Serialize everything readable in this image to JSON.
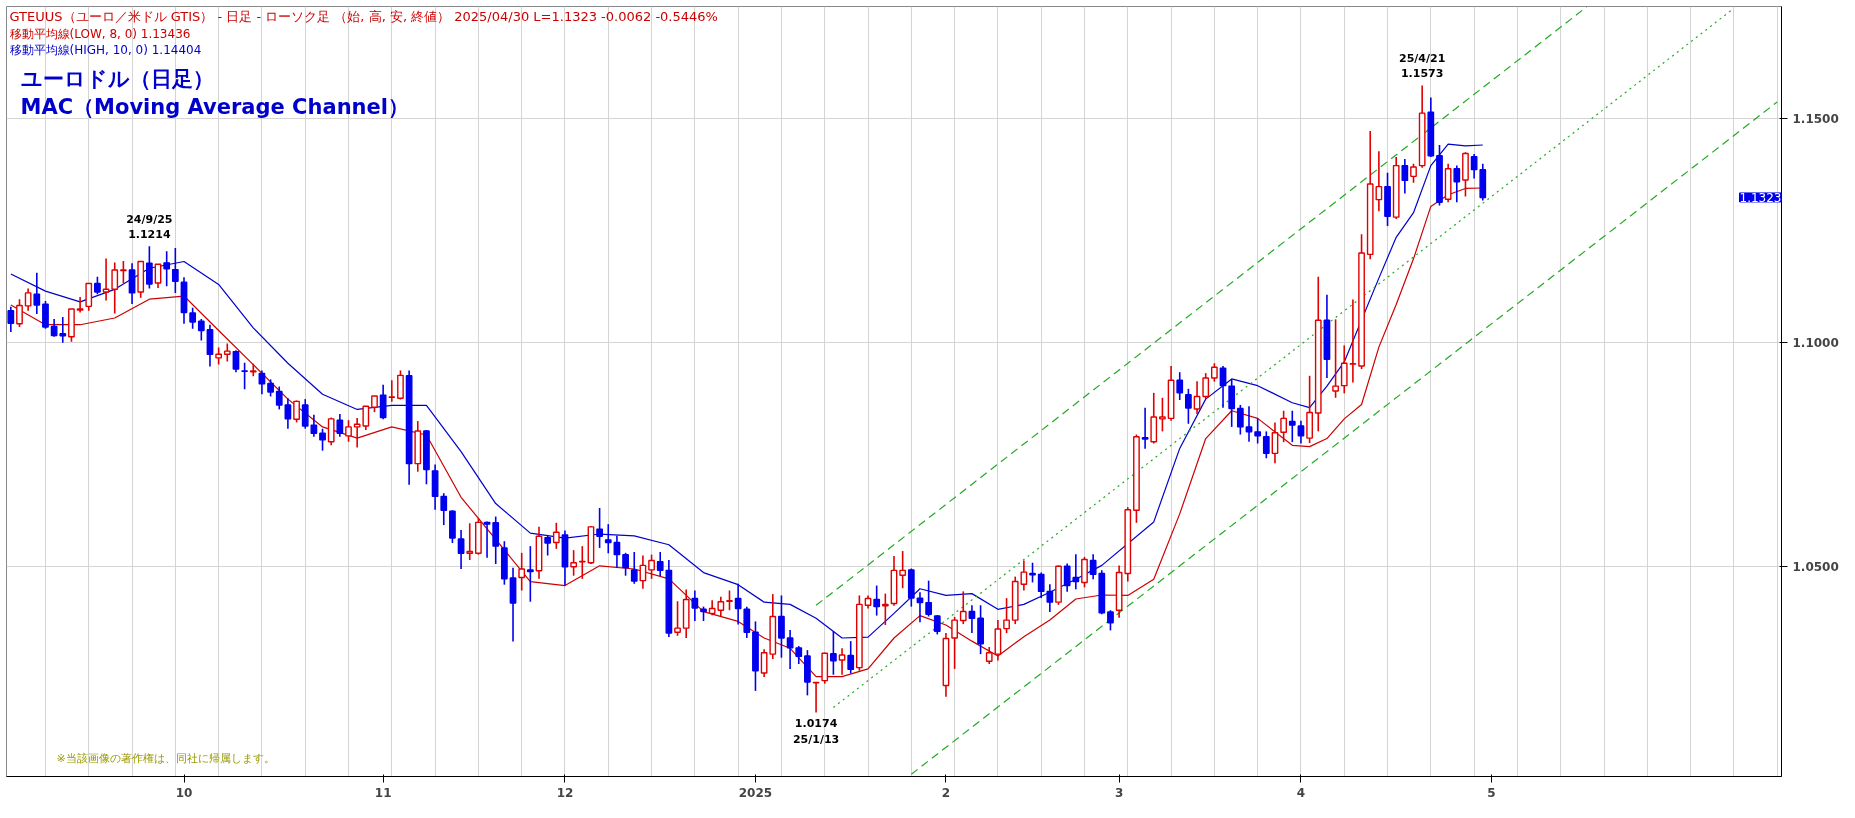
{
  "chart_data": {
    "type": "candlestick",
    "title": "GTEUUS（ユーロ／米ドル GTIS） - 日足 - ローソク足 （始, 高, 安, 終値）  2025/04/30  L=1.1323  -0.0062  -0.5446%",
    "subtitle": "ユーロドル（日足）\n MAC（Moving Average Channel）",
    "categories": [
      null,
      null,
      null,
      null,
      null,
      null,
      null,
      null,
      null,
      null,
      null,
      null,
      null,
      null,
      null,
      null,
      null,
      null,
      null,
      null,
      "10",
      null,
      null,
      null,
      null,
      null,
      null,
      null,
      null,
      null,
      null,
      null,
      null,
      null,
      null,
      null,
      null,
      null,
      null,
      null,
      null,
      null,
      null,
      "11",
      null,
      null,
      null,
      null,
      null,
      null,
      null,
      null,
      null,
      null,
      null,
      null,
      null,
      null,
      null,
      null,
      null,
      null,
      null,
      null,
      "12",
      null,
      null,
      null,
      null,
      null,
      null,
      null,
      null,
      null,
      null,
      null,
      null,
      null,
      null,
      null,
      null,
      null,
      null,
      null,
      null,
      null,
      "2025",
      null,
      null,
      null,
      null,
      null,
      null,
      null,
      null,
      null,
      null,
      null,
      null,
      null,
      null,
      null,
      null,
      null,
      null,
      null,
      null,
      null,
      "2",
      null,
      null,
      null,
      null,
      null,
      null,
      null,
      null,
      null,
      null,
      null,
      null,
      null,
      null,
      null,
      null,
      null,
      null,
      null,
      "3",
      null,
      null,
      null,
      null,
      null,
      null,
      null,
      null,
      null,
      null,
      null,
      null,
      null,
      null,
      null,
      null,
      null,
      null,
      null,
      null,
      "4",
      null,
      null,
      null,
      null,
      null,
      null,
      null,
      null,
      null,
      null,
      null,
      null,
      null,
      null,
      null,
      null,
      null,
      null,
      null,
      null,
      null,
      "5",
      null,
      null,
      null,
      null,
      null,
      null,
      null,
      null,
      null,
      null,
      null,
      null,
      null,
      null,
      null,
      null,
      null,
      null,
      null,
      null,
      null,
      null,
      null,
      null,
      null,
      null,
      null,
      null,
      null,
      null,
      null,
      null,
      null
    ],
    "ohlc": [
      [
        1.107,
        1.1079,
        1.1023,
        1.1042
      ],
      [
        1.1041,
        1.1096,
        1.1034,
        1.1082
      ],
      [
        1.1081,
        1.112,
        1.107,
        1.111
      ],
      [
        1.1107,
        1.1155,
        1.1063,
        1.1083
      ],
      [
        1.1085,
        1.1092,
        1.103,
        1.1034
      ],
      [
        1.1035,
        1.1052,
        1.1012,
        1.1015
      ],
      [
        1.1019,
        1.1056,
        1.0999,
        1.1014
      ],
      [
        1.1012,
        1.1074,
        1.1001,
        1.1074
      ],
      [
        1.1072,
        1.1101,
        1.1066,
        1.1074
      ],
      [
        1.108,
        1.1131,
        1.107,
        1.1131
      ],
      [
        1.1131,
        1.1146,
        1.1107,
        1.1112
      ],
      [
        1.1112,
        1.1187,
        1.1093,
        1.1118
      ],
      [
        1.1118,
        1.1178,
        1.1064,
        1.1161
      ],
      [
        1.116,
        1.1181,
        1.1132,
        1.1161
      ],
      [
        1.1161,
        1.1176,
        1.1085,
        1.111
      ],
      [
        1.1112,
        1.118,
        1.1099,
        1.118
      ],
      [
        1.1176,
        1.1214,
        1.112,
        1.113
      ],
      [
        1.1132,
        1.1174,
        1.1121,
        1.1174
      ],
      [
        1.1177,
        1.1203,
        1.1125,
        1.1164
      ],
      [
        1.1162,
        1.121,
        1.111,
        1.1136
      ],
      [
        1.1134,
        1.1145,
        1.1041,
        1.1066
      ],
      [
        1.1065,
        1.1077,
        1.103,
        1.1045
      ],
      [
        1.1047,
        1.1052,
        1.1004,
        1.1026
      ],
      [
        1.1028,
        1.1039,
        1.0946,
        1.0973
      ],
      [
        1.0965,
        1.0988,
        1.095,
        1.0973
      ],
      [
        1.0973,
        1.0997,
        1.0957,
        1.098
      ],
      [
        1.0979,
        1.0982,
        1.0933,
        1.094
      ],
      [
        1.0936,
        1.0954,
        1.0895,
        1.0935
      ],
      [
        1.0934,
        1.0952,
        1.0924,
        1.0936
      ],
      [
        1.093,
        1.0937,
        1.0884,
        1.0907
      ],
      [
        1.0908,
        1.0917,
        1.0879,
        1.0889
      ],
      [
        1.089,
        1.0901,
        1.085,
        1.086
      ],
      [
        1.086,
        1.0875,
        1.0807,
        1.0829
      ],
      [
        1.0828,
        1.087,
        1.0821,
        1.0868
      ],
      [
        1.086,
        1.0873,
        1.0807,
        1.0813
      ],
      [
        1.0815,
        1.0838,
        1.0789,
        1.0797
      ],
      [
        1.0797,
        1.0807,
        1.0758,
        1.0782
      ],
      [
        1.0778,
        1.0832,
        1.077,
        1.0829
      ],
      [
        1.0826,
        1.084,
        1.0789,
        1.0797
      ],
      [
        1.0791,
        1.0826,
        1.0778,
        1.0811
      ],
      [
        1.0811,
        1.0831,
        1.0765,
        1.0817
      ],
      [
        1.0813,
        1.0857,
        1.0804,
        1.0857
      ],
      [
        1.0855,
        1.088,
        1.0844,
        1.088
      ],
      [
        1.0882,
        1.0905,
        1.0828,
        1.0832
      ],
      [
        1.0877,
        1.0915,
        1.0867,
        1.0878
      ],
      [
        1.0875,
        1.0937,
        1.0872,
        1.0926
      ],
      [
        1.0925,
        1.0937,
        1.0682,
        1.0729
      ],
      [
        1.0729,
        1.0824,
        1.0711,
        1.0802
      ],
      [
        1.0802,
        1.0804,
        1.0683,
        1.0716
      ],
      [
        1.0713,
        1.0727,
        1.0626,
        1.0656
      ],
      [
        1.0656,
        1.0663,
        1.0592,
        1.0625
      ],
      [
        1.0623,
        1.0625,
        1.0552,
        1.0563
      ],
      [
        1.0561,
        1.0581,
        1.0494,
        1.0529
      ],
      [
        1.0529,
        1.0596,
        1.0514,
        1.0533
      ],
      [
        1.0529,
        1.0608,
        1.0526,
        1.0598
      ],
      [
        1.0598,
        1.06,
        1.0519,
        1.0594
      ],
      [
        1.0597,
        1.0611,
        1.0505,
        1.0545
      ],
      [
        1.0541,
        1.0556,
        1.0459,
        1.0472
      ],
      [
        1.0474,
        1.0497,
        1.0332,
        1.0418
      ],
      [
        1.0475,
        1.053,
        1.0446,
        1.0494
      ],
      [
        1.0492,
        1.0545,
        1.0421,
        1.0488
      ],
      [
        1.049,
        1.0588,
        1.0472,
        1.0567
      ],
      [
        1.0564,
        1.057,
        1.0524,
        1.0552
      ],
      [
        1.0553,
        1.0597,
        1.0539,
        1.0576
      ],
      [
        1.057,
        1.058,
        1.0457,
        1.0499
      ],
      [
        1.0499,
        1.0536,
        1.0479,
        1.0508
      ],
      [
        1.051,
        1.0545,
        1.0472,
        1.0511
      ],
      [
        1.0508,
        1.059,
        1.0505,
        1.0588
      ],
      [
        1.0583,
        1.063,
        1.0541,
        1.0567
      ],
      [
        1.0559,
        1.0594,
        1.0529,
        1.0553
      ],
      [
        1.0553,
        1.0568,
        1.0497,
        1.0526
      ],
      [
        1.0526,
        1.053,
        1.0479,
        1.0497
      ],
      [
        1.0492,
        1.0532,
        1.0461,
        1.0467
      ],
      [
        1.0468,
        1.0524,
        1.045,
        1.0502
      ],
      [
        1.0492,
        1.0526,
        1.0472,
        1.0513
      ],
      [
        1.051,
        1.0532,
        1.0478,
        1.0491
      ],
      [
        1.0491,
        1.0514,
        1.0342,
        1.0351
      ],
      [
        1.0353,
        1.0422,
        1.0345,
        1.0362
      ],
      [
        1.0362,
        1.0448,
        1.034,
        1.0426
      ],
      [
        1.0428,
        1.0446,
        1.0378,
        1.0407
      ],
      [
        1.0404,
        1.041,
        1.0378,
        1.0399
      ],
      [
        1.0395,
        1.0424,
        1.0391,
        1.0406
      ],
      [
        1.0402,
        1.0432,
        1.0388,
        1.0421
      ],
      [
        1.0422,
        1.0446,
        1.0402,
        1.0423
      ],
      [
        1.0428,
        1.0461,
        1.037,
        1.0406
      ],
      [
        1.0404,
        1.041,
        1.034,
        1.0353
      ],
      [
        1.0353,
        1.0377,
        1.0222,
        1.0267
      ],
      [
        1.0262,
        1.0315,
        1.0253,
        1.0307
      ],
      [
        1.0304,
        1.0438,
        1.0293,
        1.0388
      ],
      [
        1.0388,
        1.0435,
        1.0296,
        1.034
      ],
      [
        1.034,
        1.0358,
        1.0271,
        1.0318
      ],
      [
        1.0318,
        1.0322,
        1.0282,
        1.0299
      ],
      [
        1.03,
        1.0313,
        1.0212,
        1.0242
      ],
      [
        1.024,
        1.0242,
        1.0174,
        1.0241
      ],
      [
        1.0245,
        1.0307,
        1.0238,
        1.0306
      ],
      [
        1.0305,
        1.0355,
        1.0258,
        1.0289
      ],
      [
        1.0291,
        1.0317,
        1.0258,
        1.0302
      ],
      [
        1.0301,
        1.0333,
        1.0261,
        1.027
      ],
      [
        1.0274,
        1.0435,
        1.0267,
        1.0415
      ],
      [
        1.0413,
        1.0435,
        1.0406,
        1.0428
      ],
      [
        1.0426,
        1.0457,
        1.039,
        1.041
      ],
      [
        1.0412,
        1.0439,
        1.0369,
        1.0415
      ],
      [
        1.0417,
        1.0523,
        1.0412,
        1.0491
      ],
      [
        1.048,
        1.0534,
        1.0451,
        1.0491
      ],
      [
        1.0492,
        1.0495,
        1.041,
        1.0429
      ],
      [
        1.0429,
        1.0442,
        1.0375,
        1.0419
      ],
      [
        1.0419,
        1.0468,
        1.0388,
        1.0393
      ],
      [
        1.0389,
        1.0391,
        1.0348,
        1.0355
      ],
      [
        1.0234,
        1.0351,
        1.0209,
        1.0339
      ],
      [
        1.034,
        1.0387,
        1.0271,
        1.038
      ],
      [
        1.0379,
        1.0444,
        1.0371,
        1.0399
      ],
      [
        1.0399,
        1.0413,
        1.0351,
        1.0384
      ],
      [
        1.0384,
        1.0413,
        1.0304,
        1.0327
      ],
      [
        1.0288,
        1.032,
        1.0282,
        1.0307
      ],
      [
        1.0304,
        1.038,
        1.029,
        1.036
      ],
      [
        1.0361,
        1.0429,
        1.0351,
        1.038
      ],
      [
        1.038,
        1.0477,
        1.0371,
        1.0466
      ],
      [
        1.046,
        1.0513,
        1.0446,
        1.0487
      ],
      [
        1.0484,
        1.0508,
        1.0464,
        1.0481
      ],
      [
        1.0482,
        1.0486,
        1.0429,
        1.0444
      ],
      [
        1.0444,
        1.046,
        1.0398,
        1.042
      ],
      [
        1.042,
        1.0502,
        1.0414,
        1.05
      ],
      [
        1.05,
        1.0506,
        1.0443,
        1.0457
      ],
      [
        1.0475,
        1.0527,
        1.0449,
        1.0466
      ],
      [
        1.0464,
        1.0521,
        1.0453,
        1.0515
      ],
      [
        1.0513,
        1.0527,
        1.0471,
        1.0482
      ],
      [
        1.0484,
        1.0491,
        1.0393,
        1.0396
      ],
      [
        1.0398,
        1.0402,
        1.0357,
        1.0374
      ],
      [
        1.0402,
        1.0502,
        1.0385,
        1.0486
      ],
      [
        1.0484,
        1.0632,
        1.0466,
        1.0626
      ],
      [
        1.0625,
        1.0794,
        1.0597,
        1.0789
      ],
      [
        1.0787,
        1.0854,
        1.0762,
        1.0784
      ],
      [
        1.0778,
        1.0887,
        1.0774,
        1.0833
      ],
      [
        1.0829,
        1.0876,
        1.0801,
        1.0833
      ],
      [
        1.083,
        1.0947,
        1.0825,
        1.0915
      ],
      [
        1.0915,
        1.0933,
        1.0871,
        1.0887
      ],
      [
        1.0883,
        1.0896,
        1.0818,
        1.0853
      ],
      [
        1.0851,
        1.0913,
        1.084,
        1.0879
      ],
      [
        1.0879,
        1.0931,
        1.0873,
        1.092
      ],
      [
        1.092,
        1.0953,
        1.0912,
        1.0944
      ],
      [
        1.0942,
        1.0947,
        1.0854,
        1.0903
      ],
      [
        1.0902,
        1.0917,
        1.0811,
        1.0852
      ],
      [
        1.0852,
        1.086,
        1.0794,
        1.0811
      ],
      [
        1.0811,
        1.0857,
        1.0778,
        1.08
      ],
      [
        1.08,
        1.083,
        1.0774,
        1.0791
      ],
      [
        1.0789,
        1.0801,
        1.0741,
        1.0752
      ],
      [
        1.0752,
        1.0821,
        1.073,
        1.0798
      ],
      [
        1.0799,
        1.0847,
        1.0777,
        1.083
      ],
      [
        1.0823,
        1.0847,
        1.0777,
        1.0815
      ],
      [
        1.0813,
        1.0825,
        1.0774,
        1.0791
      ],
      [
        1.0786,
        1.0925,
        1.0775,
        1.0843
      ],
      [
        1.0842,
        1.1146,
        1.0801,
        1.1049
      ],
      [
        1.1049,
        1.1106,
        1.092,
        1.0962
      ],
      [
        1.0891,
        1.1051,
        1.0876,
        1.0902
      ],
      [
        1.0903,
        1.0993,
        1.0886,
        1.0953
      ],
      [
        1.0951,
        1.1095,
        1.091,
        1.0952
      ],
      [
        1.0947,
        1.1241,
        1.094,
        1.1199
      ],
      [
        1.1196,
        1.1471,
        1.1185,
        1.1353
      ],
      [
        1.1318,
        1.1426,
        1.1292,
        1.1347
      ],
      [
        1.1347,
        1.1378,
        1.1259,
        1.1281
      ],
      [
        1.1279,
        1.1413,
        1.1275,
        1.1394
      ],
      [
        1.1394,
        1.1409,
        1.1332,
        1.1361
      ],
      [
        1.137,
        1.1398,
        1.1356,
        1.1391
      ],
      [
        1.1394,
        1.1573,
        1.1389,
        1.1511
      ],
      [
        1.1513,
        1.1546,
        1.1413,
        1.1416
      ],
      [
        1.1416,
        1.144,
        1.1305,
        1.1312
      ],
      [
        1.1319,
        1.1398,
        1.1312,
        1.1387
      ],
      [
        1.1387,
        1.1394,
        1.1312,
        1.1358
      ],
      [
        1.1362,
        1.1424,
        1.1325,
        1.1421
      ],
      [
        1.1414,
        1.142,
        1.1365,
        1.1385
      ],
      [
        1.1385,
        1.1398,
        1.1316,
        1.1323
      ],
      null,
      null,
      null,
      null,
      null,
      null,
      null,
      null,
      null,
      null,
      null,
      null,
      null,
      null,
      null,
      null,
      null,
      null,
      null,
      null,
      null,
      null,
      null,
      null,
      null,
      null,
      null,
      null,
      null,
      null,
      null,
      null,
      null,
      null
    ],
    "colors": [
      "#0000ee",
      "#e00000",
      "#e00000",
      "#0000ee",
      "#0000ee",
      "#0000ee",
      "#0000ee",
      "#e00000",
      "#e00000",
      "#e00000",
      "#0000ee",
      "#e00000",
      "#e00000",
      "#e00000",
      "#0000ee",
      "#e00000",
      "#0000ee",
      "#e00000",
      "#0000ee",
      "#0000ee",
      "#0000ee",
      "#0000ee",
      "#0000ee",
      "#0000ee",
      "#e00000",
      "#e00000",
      "#0000ee",
      "#0000ee",
      "#e00000",
      "#0000ee",
      "#0000ee",
      "#0000ee",
      "#0000ee",
      "#e00000",
      "#0000ee",
      "#0000ee",
      "#0000ee",
      "#e00000",
      "#0000ee",
      "#e00000",
      "#e00000",
      "#e00000",
      "#e00000",
      "#0000ee",
      "#e00000",
      "#e00000",
      "#0000ee",
      "#e00000",
      "#0000ee",
      "#0000ee",
      "#0000ee",
      "#0000ee",
      "#0000ee",
      "#e00000",
      "#e00000",
      "#0000ee",
      "#0000ee",
      "#0000ee",
      "#0000ee",
      "#e00000",
      "#0000ee",
      "#e00000",
      "#0000ee",
      "#e00000",
      "#0000ee",
      "#e00000",
      "#e00000",
      "#e00000",
      "#0000ee",
      "#0000ee",
      "#0000ee",
      "#0000ee",
      "#0000ee",
      "#e00000",
      "#e00000",
      "#0000ee",
      "#0000ee",
      "#e00000",
      "#e00000",
      "#0000ee",
      "#0000ee",
      "#e00000",
      "#e00000",
      "#e00000",
      "#0000ee",
      "#0000ee",
      "#0000ee",
      "#e00000",
      "#e00000",
      "#0000ee",
      "#0000ee",
      "#0000ee",
      "#0000ee",
      "#e00000",
      "#e00000",
      "#0000ee",
      "#e00000",
      "#0000ee",
      "#e00000",
      "#e00000",
      "#0000ee",
      "#e00000",
      "#e00000",
      "#e00000",
      "#0000ee",
      "#0000ee",
      "#0000ee",
      "#0000ee",
      "#e00000",
      "#e00000",
      "#e00000",
      "#0000ee",
      "#0000ee",
      "#e00000",
      "#e00000",
      "#e00000",
      "#e00000",
      "#e00000",
      "#0000ee",
      "#0000ee",
      "#0000ee",
      "#e00000",
      "#0000ee",
      "#0000ee",
      "#e00000",
      "#0000ee",
      "#0000ee",
      "#0000ee",
      "#e00000",
      "#e00000",
      "#e00000",
      "#0000ee",
      "#e00000",
      "#e00000",
      "#e00000",
      "#0000ee",
      "#0000ee",
      "#e00000",
      "#e00000",
      "#e00000",
      "#0000ee",
      "#0000ee",
      "#0000ee",
      "#0000ee",
      "#0000ee",
      "#0000ee",
      "#e00000",
      "#e00000",
      "#0000ee",
      "#0000ee",
      "#e00000",
      "#e00000",
      "#0000ee",
      "#e00000",
      "#e00000",
      "#e00000",
      "#e00000",
      "#e00000",
      "#e00000",
      "#0000ee",
      "#e00000",
      "#0000ee",
      "#e00000",
      "#e00000",
      "#0000ee",
      "#0000ee",
      "#e00000",
      "#0000ee",
      "#e00000",
      "#0000ee",
      "#0000ee",
      null,
      null,
      null,
      null,
      null,
      null,
      null,
      null,
      null,
      null,
      null,
      null,
      null,
      null,
      null,
      null,
      null,
      null,
      null,
      null,
      null,
      null,
      null,
      null,
      null,
      null,
      null,
      null,
      null,
      null,
      null,
      null,
      null,
      null
    ],
    "series": [
      {
        "type": "line",
        "name": "移動平均線(LOW, 8, 0) 1.13436",
        "color": "#cc0000",
        "line_style": "solid",
        "values": [
          1.1083,
          null,
          null,
          null,
          1.1039,
          null,
          null,
          null,
          1.1039,
          null,
          null,
          null,
          1.1054,
          null,
          null,
          null,
          1.1096,
          null,
          null,
          null,
          1.1103,
          null,
          null,
          null,
          1.1026,
          null,
          null,
          null,
          1.095,
          null,
          null,
          null,
          1.0873,
          null,
          null,
          null,
          1.0811,
          null,
          null,
          null,
          1.0786,
          null,
          null,
          null,
          1.0811,
          null,
          null,
          null,
          1.0793,
          null,
          null,
          null,
          1.0654,
          null,
          null,
          null,
          null,
          null,
          null,
          null,
          1.0466,
          null,
          null,
          null,
          1.0457,
          null,
          null,
          null,
          1.0501,
          null,
          null,
          null,
          1.0494,
          null,
          null,
          null,
          1.0472,
          null,
          null,
          null,
          1.0399,
          null,
          null,
          null,
          1.0377,
          null,
          null,
          1.034,
          null,
          null,
          1.0317,
          null,
          null,
          1.0254,
          null,
          null,
          1.0254,
          null,
          null,
          1.0271,
          null,
          null,
          1.034,
          null,
          null,
          1.039,
          null,
          null,
          1.0369,
          null,
          null,
          1.0333,
          null,
          null,
          1.03,
          null,
          null,
          1.0343,
          null,
          null,
          1.038,
          null,
          null,
          1.0427,
          null,
          null,
          1.0436,
          null,
          null,
          1.0435,
          null,
          null,
          1.0471,
          null,
          null,
          1.0617,
          null,
          null,
          1.0785,
          null,
          null,
          1.0847,
          null,
          null,
          1.083,
          null,
          null,
          null,
          1.077,
          null,
          1.0767,
          null,
          1.0785,
          null,
          1.0829,
          null,
          1.0861,
          null,
          1.0989,
          null,
          1.1084,
          null,
          1.1186,
          null,
          1.1303,
          null,
          1.1329,
          null,
          1.1343,
          null,
          1.1344,
          null,
          null,
          null,
          null,
          null,
          null,
          null,
          null,
          null,
          null,
          null,
          null,
          null,
          null,
          null,
          null,
          null,
          null,
          null,
          null,
          null,
          null,
          null,
          null,
          null,
          null,
          null,
          null,
          null,
          null,
          null,
          null,
          null,
          null
        ]
      },
      {
        "type": "line",
        "name": "移動平均線(HIGH, 10, 0) 1.14404",
        "color": "#0000cc",
        "line_style": "solid",
        "values": [
          1.1152,
          null,
          null,
          null,
          1.1114,
          null,
          null,
          null,
          1.109,
          null,
          null,
          null,
          1.1118,
          null,
          null,
          null,
          1.1165,
          null,
          null,
          null,
          1.118,
          null,
          null,
          null,
          1.1129,
          null,
          null,
          null,
          1.1032,
          null,
          null,
          null,
          1.0953,
          null,
          null,
          null,
          1.0884,
          null,
          null,
          null,
          1.085,
          null,
          null,
          null,
          1.0859,
          null,
          null,
          null,
          1.0859,
          null,
          null,
          null,
          1.0756,
          null,
          null,
          null,
          1.064,
          null,
          null,
          null,
          1.0574,
          null,
          null,
          null,
          1.0563,
          null,
          null,
          null,
          1.0572,
          null,
          null,
          null,
          1.0568,
          null,
          null,
          null,
          1.0548,
          null,
          null,
          null,
          1.0486,
          null,
          null,
          null,
          1.0459,
          null,
          null,
          1.042,
          null,
          null,
          1.0415,
          null,
          null,
          1.0384,
          null,
          null,
          1.034,
          null,
          null,
          1.0342,
          null,
          null,
          1.0395,
          null,
          null,
          1.045,
          null,
          null,
          1.0435,
          null,
          null,
          1.0439,
          null,
          null,
          1.0404,
          null,
          null,
          1.0415,
          null,
          null,
          1.0442,
          null,
          null,
          1.0471,
          null,
          null,
          1.0502,
          null,
          null,
          null,
          null,
          null,
          1.0599,
          null,
          null,
          1.0763,
          null,
          null,
          1.0873,
          null,
          null,
          1.0918,
          null,
          null,
          1.0903,
          null,
          null,
          null,
          1.0865,
          null,
          1.0854,
          null,
          1.0902,
          null,
          1.0956,
          null,
          null,
          null,
          1.1143,
          null,
          1.1234,
          null,
          1.1289,
          null,
          1.1394,
          null,
          1.1442,
          null,
          1.1438,
          null,
          1.144,
          null,
          null,
          null,
          null,
          null,
          null,
          null,
          null,
          null,
          null,
          null,
          null,
          null,
          null,
          null,
          null,
          null,
          null,
          null,
          null,
          null,
          null,
          null,
          null,
          null,
          null,
          null,
          null,
          null,
          null,
          null,
          null,
          null,
          null
        ]
      },
      {
        "type": "line",
        "color": "#22aa22",
        "line_style": "dashed",
        "values": [
          null,
          null,
          null,
          null,
          null,
          null,
          null,
          null,
          null,
          null,
          null,
          null,
          null,
          null,
          null,
          null,
          null,
          null,
          null,
          null,
          null,
          null,
          null,
          null,
          null,
          null,
          null,
          null,
          null,
          null,
          null,
          null,
          null,
          null,
          null,
          null,
          null,
          null,
          null,
          null,
          null,
          null,
          null,
          null,
          null,
          null,
          null,
          null,
          null,
          null,
          null,
          null,
          null,
          null,
          null,
          null,
          null,
          null,
          null,
          null,
          null,
          null,
          null,
          null,
          null,
          null,
          null,
          null,
          null,
          null,
          null,
          null,
          null,
          null,
          null,
          null,
          null,
          null,
          null,
          null,
          null,
          null,
          null,
          null,
          null,
          null,
          null,
          null,
          null,
          null,
          null,
          null,
          null,
          1.0413,
          null,
          null,
          null,
          null,
          null,
          null,
          null,
          null,
          null,
          null,
          null,
          null,
          null,
          null,
          null,
          null,
          null,
          null,
          null,
          null,
          null,
          null,
          null,
          null,
          null,
          null,
          null,
          null,
          null,
          null,
          null,
          null,
          null,
          null,
          null,
          null,
          null,
          null,
          null,
          null,
          null,
          null,
          null,
          null,
          null,
          null,
          null,
          null,
          null,
          null,
          null,
          null,
          null,
          null,
          null,
          null,
          null,
          null,
          null,
          null,
          null,
          null,
          null,
          null,
          null,
          null,
          null,
          null,
          null,
          null,
          null,
          null,
          null,
          null,
          null,
          null,
          null,
          null,
          null,
          null,
          null,
          null,
          null,
          null,
          null,
          null,
          null,
          null,
          1.1748,
          null,
          null,
          null,
          null,
          null,
          null,
          null,
          null,
          null,
          null,
          null,
          null,
          null,
          null,
          null,
          null,
          null,
          null,
          null,
          null,
          null,
          null
        ]
      },
      {
        "type": "line",
        "color": "#22aa22",
        "line_style": "dotted",
        "values": [
          null,
          null,
          null,
          null,
          null,
          null,
          null,
          null,
          null,
          null,
          null,
          null,
          null,
          null,
          null,
          null,
          null,
          null,
          null,
          null,
          null,
          null,
          null,
          null,
          null,
          null,
          null,
          null,
          null,
          null,
          null,
          null,
          null,
          null,
          null,
          null,
          null,
          null,
          null,
          null,
          null,
          null,
          null,
          null,
          null,
          null,
          null,
          null,
          null,
          null,
          null,
          null,
          null,
          null,
          null,
          null,
          null,
          null,
          null,
          null,
          null,
          null,
          null,
          null,
          null,
          null,
          null,
          null,
          null,
          null,
          null,
          null,
          null,
          null,
          null,
          null,
          null,
          null,
          null,
          null,
          null,
          null,
          null,
          null,
          null,
          null,
          null,
          null,
          null,
          null,
          null,
          null,
          null,
          null,
          null,
          1.0185,
          null,
          null,
          null,
          null,
          null,
          null,
          null,
          null,
          null,
          null,
          null,
          null,
          null,
          null,
          null,
          null,
          null,
          null,
          null,
          null,
          null,
          null,
          null,
          null,
          null,
          null,
          null,
          null,
          null,
          null,
          null,
          null,
          null,
          null,
          null,
          null,
          null,
          null,
          null,
          null,
          null,
          null,
          null,
          null,
          null,
          null,
          null,
          null,
          null,
          null,
          null,
          null,
          null,
          null,
          null,
          null,
          null,
          null,
          null,
          null,
          null,
          null,
          null,
          null,
          null,
          null,
          null,
          null,
          null,
          null,
          null,
          null,
          null,
          null,
          null,
          null,
          null,
          null,
          null,
          null,
          null,
          null,
          null,
          null,
          null,
          null,
          null,
          null,
          null,
          null,
          null,
          null,
          null,
          null,
          null,
          null,
          null,
          null,
          null,
          null,
          null,
          null,
          null,
          1.1745,
          null,
          null,
          null,
          null,
          null
        ]
      },
      {
        "type": "line",
        "color": "#22aa22",
        "line_style": "dashed",
        "values": [
          null,
          null,
          null,
          null,
          null,
          null,
          null,
          null,
          null,
          null,
          null,
          null,
          null,
          null,
          null,
          null,
          null,
          null,
          null,
          null,
          null,
          null,
          null,
          null,
          null,
          null,
          null,
          null,
          null,
          null,
          null,
          null,
          null,
          null,
          null,
          null,
          null,
          null,
          null,
          null,
          null,
          null,
          null,
          null,
          null,
          null,
          null,
          null,
          null,
          null,
          null,
          null,
          null,
          null,
          null,
          null,
          null,
          null,
          null,
          null,
          null,
          null,
          null,
          null,
          null,
          null,
          null,
          null,
          null,
          null,
          null,
          null,
          null,
          null,
          null,
          null,
          null,
          null,
          null,
          null,
          null,
          null,
          null,
          null,
          null,
          null,
          null,
          null,
          null,
          null,
          null,
          null,
          null,
          null,
          null,
          null,
          null,
          null,
          null,
          null,
          null,
          null,
          null,
          null,
          1.0036,
          null,
          null,
          null,
          null,
          null,
          null,
          null,
          null,
          null,
          null,
          null,
          null,
          null,
          null,
          null,
          null,
          null,
          null,
          null,
          null,
          null,
          null,
          null,
          null,
          null,
          null,
          null,
          null,
          null,
          null,
          null,
          null,
          null,
          null,
          null,
          null,
          null,
          null,
          null,
          null,
          null,
          null,
          null,
          null,
          null,
          null,
          null,
          null,
          null,
          null,
          null,
          null,
          null,
          null,
          null,
          null,
          null,
          null,
          null,
          null,
          null,
          null,
          null,
          null,
          null,
          null,
          null,
          null,
          null,
          null,
          null,
          null,
          null,
          null,
          null,
          null,
          null,
          null,
          null,
          null,
          null,
          null,
          null,
          null,
          null,
          null,
          null,
          null,
          null,
          null,
          null,
          null,
          null,
          null,
          null,
          null,
          null,
          null,
          null,
          1.1536
        ]
      }
    ],
    "ylim": [
      1.0031,
      1.1749
    ],
    "yticks": [
      {
        "value": 1.05,
        "label": "1.0500"
      },
      {
        "value": 1.1,
        "label": "1.1000"
      },
      {
        "value": 1.15,
        "label": "1.1500"
      }
    ],
    "grid": true,
    "legend": "top left",
    "annotations": [
      {
        "text": "24/9/25\n1.1214",
        "y": 1.1214
      },
      {
        "text": "25/4/21\n1.1573",
        "y": 1.1573
      },
      {
        "text": "1.0174\n25/1/13",
        "y": 1.0174
      },
      "1.1323",
      "※当該画像の著作権は、同社に帰属します。"
    ]
  }
}
